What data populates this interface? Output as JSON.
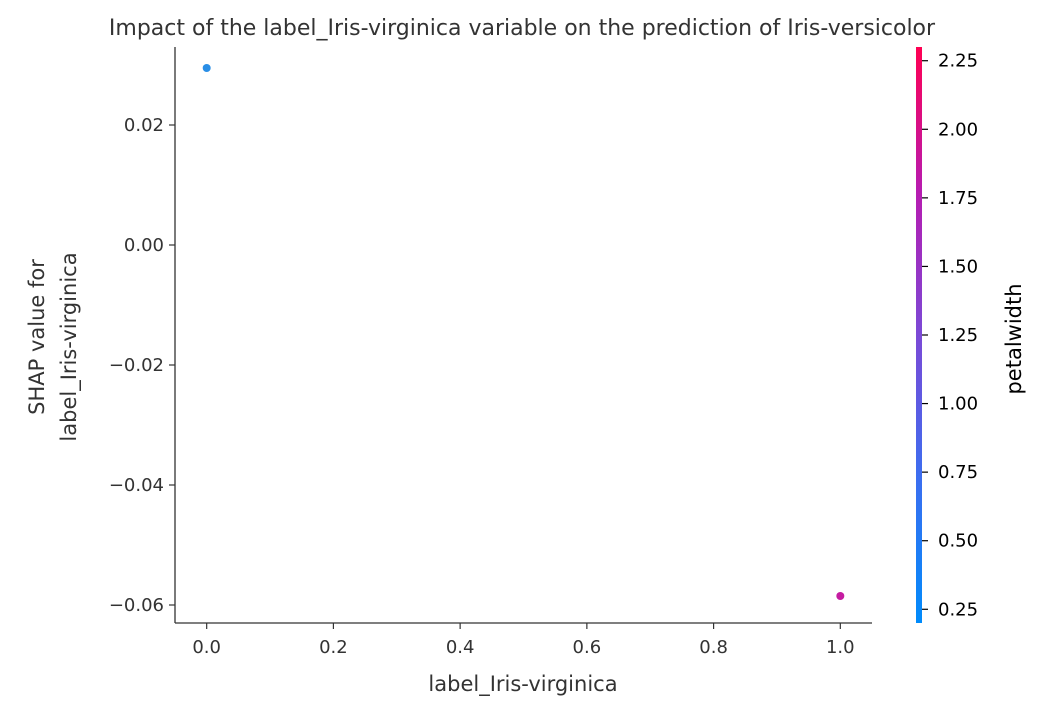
{
  "chart_data": {
    "type": "scatter",
    "title": "Impact of the label_Iris-virginica variable on the prediction of Iris-versicolor",
    "xlabel": "label_Iris-virginica",
    "ylabel_lines": [
      "SHAP value for",
      "label_Iris-virginica"
    ],
    "xlim": [
      -0.05,
      1.05
    ],
    "ylim": [
      -0.063,
      0.033
    ],
    "x_ticks": [
      {
        "value": 0.0,
        "label": "0.0"
      },
      {
        "value": 0.2,
        "label": "0.2"
      },
      {
        "value": 0.4,
        "label": "0.4"
      },
      {
        "value": 0.6,
        "label": "0.6"
      },
      {
        "value": 0.8,
        "label": "0.8"
      },
      {
        "value": 1.0,
        "label": "1.0"
      }
    ],
    "y_ticks": [
      {
        "value": 0.02,
        "label": "0.02"
      },
      {
        "value": 0.0,
        "label": "0.00"
      },
      {
        "value": -0.02,
        "label": "−0.02"
      },
      {
        "value": -0.04,
        "label": "−0.04"
      },
      {
        "value": -0.06,
        "label": "−0.06"
      }
    ],
    "points": [
      {
        "x": 0.0,
        "y": 0.0295,
        "color": "#1e88e5"
      },
      {
        "x": 1.0,
        "y": -0.0585,
        "color": "#c2109c"
      }
    ],
    "colorbar": {
      "label": "petalwidth",
      "range": [
        0.2,
        2.3
      ],
      "gradient_colors": [
        "#008bfb",
        "#3b6ef0",
        "#7b49d6",
        "#b71bb0",
        "#ff0052"
      ],
      "ticks": [
        {
          "value": 0.25,
          "label": "0.25"
        },
        {
          "value": 0.5,
          "label": "0.50"
        },
        {
          "value": 0.75,
          "label": "0.75"
        },
        {
          "value": 1.0,
          "label": "1.00"
        },
        {
          "value": 1.25,
          "label": "1.25"
        },
        {
          "value": 1.5,
          "label": "1.50"
        },
        {
          "value": 1.75,
          "label": "1.75"
        },
        {
          "value": 2.0,
          "label": "2.00"
        },
        {
          "value": 2.25,
          "label": "2.25"
        }
      ]
    },
    "grid": false
  }
}
